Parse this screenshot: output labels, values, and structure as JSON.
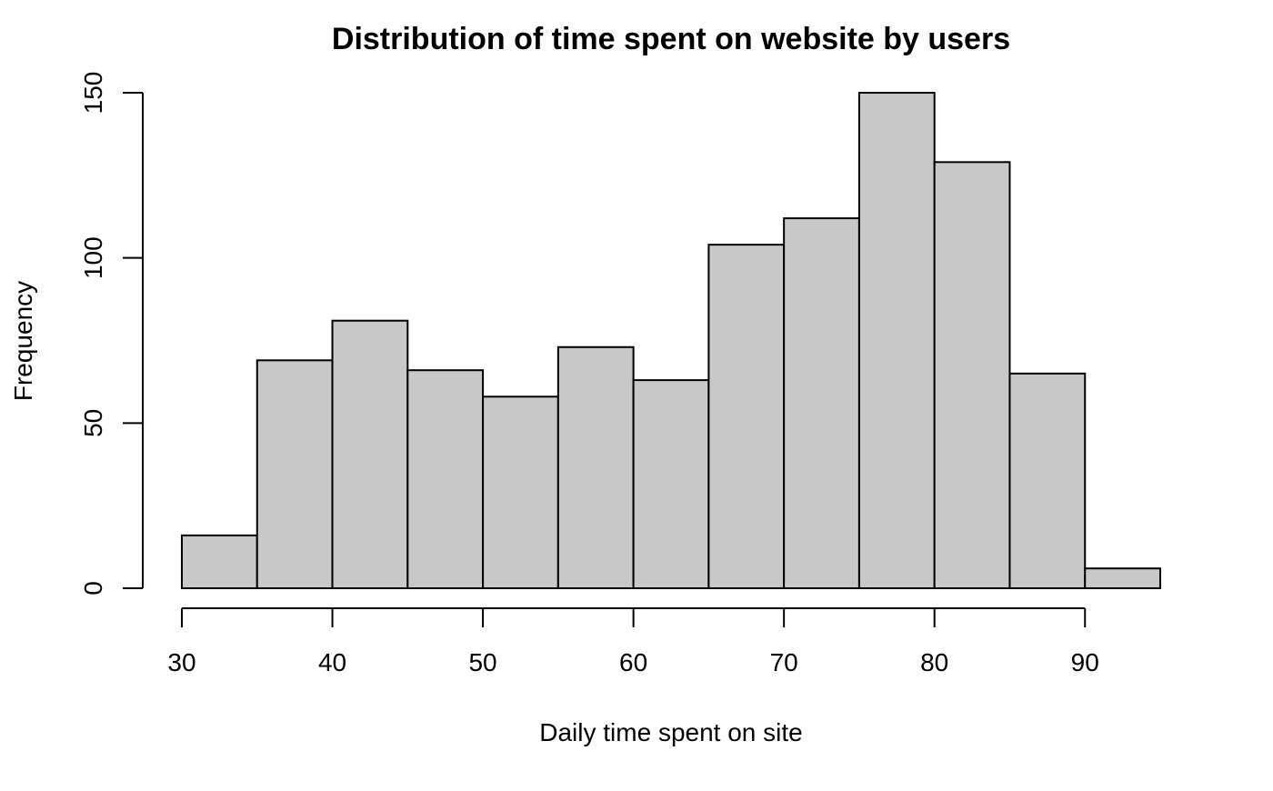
{
  "chart_data": {
    "type": "bar",
    "title": "Distribution of time spent on website by users",
    "xlabel": "Daily time spent on site",
    "ylabel": "Frequency",
    "bin_edges": [
      30,
      35,
      40,
      45,
      50,
      55,
      60,
      65,
      70,
      75,
      80,
      85,
      90,
      95
    ],
    "values": [
      16,
      69,
      81,
      66,
      58,
      73,
      63,
      104,
      112,
      150,
      129,
      65,
      6
    ],
    "xlim": [
      30,
      95
    ],
    "ylim": [
      0,
      150
    ],
    "x_ticks": [
      30,
      40,
      50,
      60,
      70,
      80,
      90
    ],
    "y_ticks": [
      0,
      50,
      100,
      150
    ],
    "grid": false,
    "bar_fill_color": "#c8c8c8",
    "bar_stroke_color": "#000000"
  }
}
